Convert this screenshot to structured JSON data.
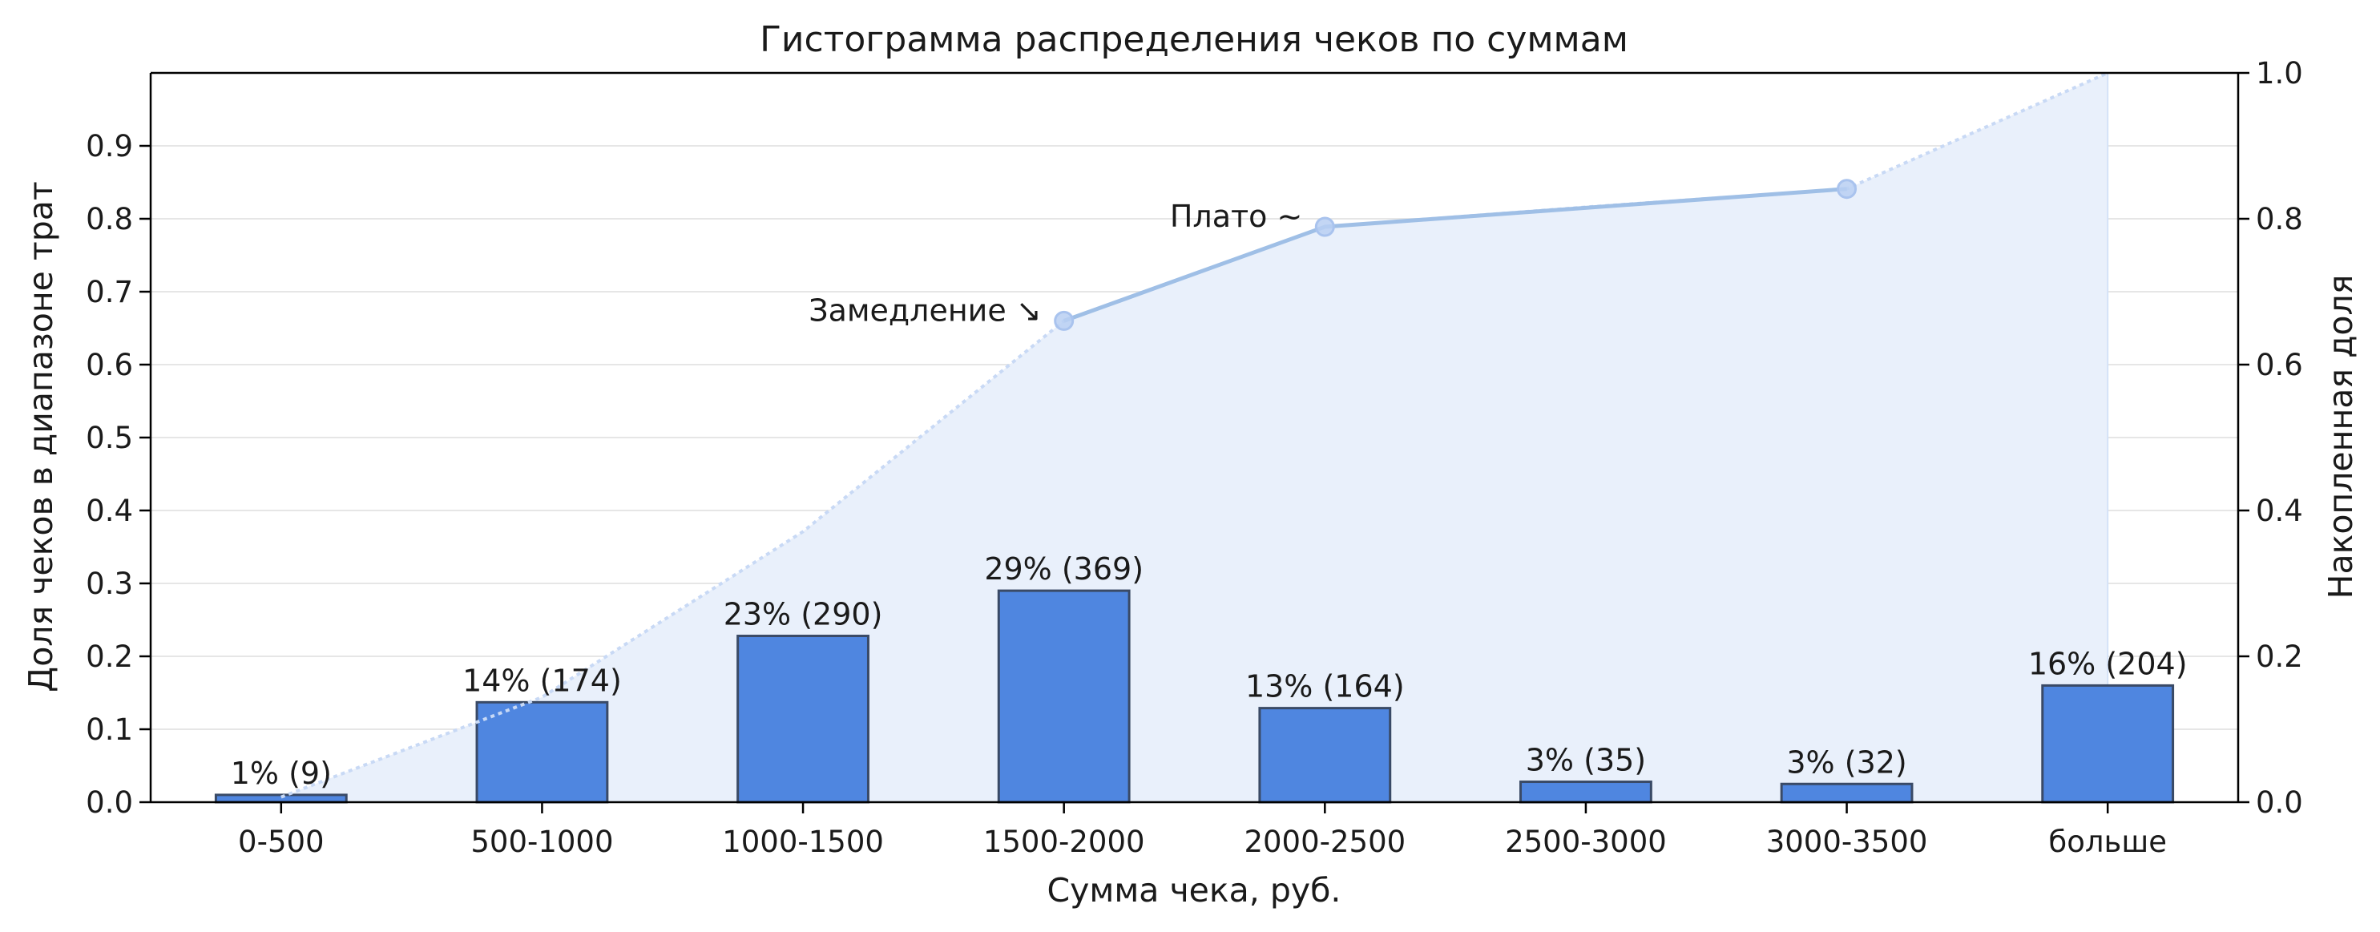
{
  "chart_data": {
    "type": "bar",
    "title": "Гистограмма распределения чеков по суммам",
    "xlabel": "Сумма чека, руб.",
    "ylabel": "Доля чеков в диапазоне трат",
    "y2label": "Накопленная доля",
    "categories": [
      "0-500",
      "500-1000",
      "1000-1500",
      "1500-2000",
      "2000-2500",
      "2500-3000",
      "3000-3500",
      "больше"
    ],
    "values": [
      0.01,
      0.137,
      0.228,
      0.29,
      0.129,
      0.028,
      0.025,
      0.16
    ],
    "bar_labels": [
      "1% (9)",
      "14% (174)",
      "23% (290)",
      "29% (369)",
      "13% (164)",
      "3% (35)",
      "3% (32)",
      "16% (204)"
    ],
    "ylim": [
      0,
      1.0
    ],
    "yticks": [
      "0.0",
      "0.1",
      "0.2",
      "0.3",
      "0.4",
      "0.5",
      "0.6",
      "0.7",
      "0.8",
      "0.9"
    ],
    "y2lim": [
      0,
      1.0
    ],
    "y2ticks": [
      "0.0",
      "0.2",
      "0.4",
      "0.6",
      "0.8",
      "1.0"
    ],
    "cumulative": [
      0.007,
      0.144,
      0.371,
      0.66,
      0.789,
      0.816,
      0.841,
      1.0
    ],
    "highlight_points": [
      3,
      4,
      6
    ],
    "annotations": [
      {
        "text": "Замедление ↘",
        "point": 3
      },
      {
        "text": "Плато ~",
        "point": 4
      }
    ],
    "grid": "horizontal",
    "colors": {
      "bar": "#4f86e0",
      "bar_edge": "#3a4a66",
      "area": "#e9f0fb",
      "cum_line": "#c8d9f5",
      "highlight_line": "#9fbfe6",
      "marker": "#b9cff2",
      "grid": "#e6e6e6"
    }
  }
}
